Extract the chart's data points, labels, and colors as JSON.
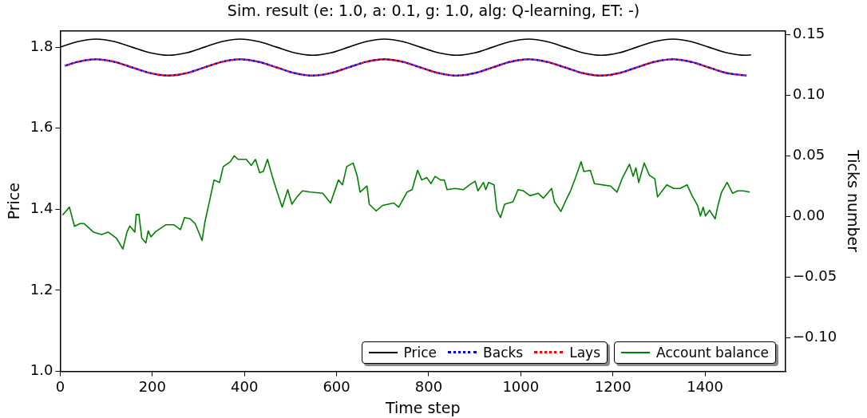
{
  "chart_data": {
    "type": "line",
    "title": "Sim. result (e: 1.0, a: 0.1, g: 1.0, alg: Q-learning, ET: -)",
    "xlabel": "Time step",
    "ylabel": "Price",
    "y2label": "Ticks number",
    "xlim": [
      0,
      1575
    ],
    "xticks": [
      0,
      200,
      400,
      600,
      800,
      1000,
      1200,
      1400
    ],
    "ylim": [
      1.0,
      1.84
    ],
    "yticks": [
      {
        "value": 1,
        "label": "1.0"
      },
      1.2,
      1.4,
      1.6,
      1.8
    ],
    "y2lim": [
      -0.128,
      0.153
    ],
    "y2ticks": [
      {
        "value": -0.1,
        "label": "−0.10"
      },
      -0.05,
      {
        "value": 0,
        "label": "0.00"
      },
      0.05,
      {
        "value": 0.1,
        "label": "0.10"
      },
      0.15
    ],
    "grid": false,
    "legend": "bottom right",
    "marker": "none",
    "series": [
      {
        "name": "Price",
        "color": "#000000",
        "line_style": "solid",
        "x": [
          0,
          39,
          78,
          117,
          156,
          196,
          235,
          274,
          313,
          352,
          391,
          430,
          470,
          509,
          548,
          587,
          626,
          665,
          704,
          743,
          782,
          822,
          861,
          900,
          939,
          978,
          1017,
          1056,
          1096,
          1135,
          1174,
          1213,
          1252,
          1291,
          1330,
          1369,
          1408,
          1448,
          1487,
          1500
        ],
        "values": [
          1.8,
          1.814,
          1.82,
          1.814,
          1.8,
          1.786,
          1.78,
          1.786,
          1.8,
          1.814,
          1.82,
          1.814,
          1.8,
          1.786,
          1.78,
          1.786,
          1.8,
          1.814,
          1.82,
          1.814,
          1.8,
          1.786,
          1.78,
          1.786,
          1.8,
          1.814,
          1.82,
          1.814,
          1.8,
          1.786,
          1.78,
          1.786,
          1.8,
          1.814,
          1.82,
          1.814,
          1.8,
          1.786,
          1.78,
          1.781
        ]
      },
      {
        "name": "Backs",
        "color": "#0000ff",
        "line_style": "dotted",
        "x": [
          10,
          39,
          78,
          117,
          156,
          196,
          235,
          274,
          313,
          352,
          391,
          430,
          470,
          509,
          548,
          587,
          626,
          665,
          704,
          743,
          782,
          822,
          861,
          900,
          939,
          978,
          1017,
          1056,
          1096,
          1135,
          1174,
          1213,
          1252,
          1291,
          1330,
          1369,
          1408,
          1448,
          1490
        ],
        "values": [
          1.754,
          1.764,
          1.77,
          1.764,
          1.75,
          1.736,
          1.73,
          1.736,
          1.75,
          1.764,
          1.77,
          1.764,
          1.75,
          1.736,
          1.73,
          1.736,
          1.75,
          1.764,
          1.77,
          1.764,
          1.75,
          1.736,
          1.73,
          1.736,
          1.75,
          1.764,
          1.77,
          1.764,
          1.75,
          1.736,
          1.73,
          1.736,
          1.75,
          1.764,
          1.77,
          1.764,
          1.75,
          1.736,
          1.73
        ]
      },
      {
        "name": "Lays",
        "color": "#ff0000",
        "line_style": "dotted",
        "x": [
          10,
          39,
          78,
          117,
          156,
          196,
          235,
          274,
          313,
          352,
          391,
          430,
          470,
          509,
          548,
          587,
          626,
          665,
          704,
          743,
          782,
          822,
          861,
          900,
          939,
          978,
          1017,
          1056,
          1096,
          1135,
          1174,
          1213,
          1252,
          1291,
          1330,
          1369,
          1408,
          1448,
          1490
        ],
        "values": [
          1.754,
          1.764,
          1.77,
          1.764,
          1.75,
          1.736,
          1.73,
          1.736,
          1.75,
          1.764,
          1.77,
          1.764,
          1.75,
          1.736,
          1.73,
          1.736,
          1.75,
          1.764,
          1.77,
          1.764,
          1.75,
          1.736,
          1.73,
          1.736,
          1.75,
          1.764,
          1.77,
          1.764,
          1.75,
          1.736,
          1.73,
          1.736,
          1.75,
          1.764,
          1.77,
          1.764,
          1.75,
          1.736,
          1.73
        ]
      },
      {
        "name": "Account balance",
        "color": "#008000",
        "line_style": "solid",
        "axis": "y2",
        "x": [
          5,
          20,
          31,
          43,
          52,
          72,
          90,
          104,
          122,
          136,
          145,
          151,
          162,
          165,
          171,
          177,
          186,
          191,
          197,
          206,
          229,
          247,
          261,
          270,
          282,
          293,
          308,
          314,
          325,
          334,
          346,
          354,
          369,
          378,
          386,
          404,
          415,
          424,
          433,
          441,
          450,
          462,
          471,
          482,
          494,
          503,
          514,
          526,
          543,
          570,
          587,
          604,
          613,
          622,
          636,
          645,
          651,
          666,
          671,
          686,
          700,
          724,
          735,
          753,
          764,
          776,
          785,
          796,
          805,
          814,
          826,
          834,
          840,
          857,
          875,
          889,
          901,
          907,
          919,
          924,
          930,
          942,
          948,
          956,
          965,
          983,
          994,
          1006,
          1020,
          1038,
          1049,
          1067,
          1073,
          1087,
          1099,
          1108,
          1119,
          1131,
          1137,
          1151,
          1160,
          1195,
          1209,
          1221,
          1236,
          1244,
          1250,
          1256,
          1268,
          1279,
          1291,
          1297,
          1317,
          1332,
          1346,
          1361,
          1372,
          1384,
          1390,
          1396,
          1401,
          1410,
          1422,
          1428,
          1436,
          1448,
          1460,
          1471,
          1483,
          1497
        ],
        "values": [
          0.001,
          0.0076,
          -0.0083,
          -0.006,
          -0.006,
          -0.013,
          -0.015,
          -0.013,
          -0.018,
          -0.027,
          -0.013,
          -0.008,
          -0.013,
          0.0015,
          0.0015,
          -0.018,
          -0.022,
          -0.012,
          -0.017,
          -0.013,
          -0.007,
          -0.007,
          -0.011,
          -0.001,
          -0.002,
          -0.006,
          -0.02,
          -0.005,
          0.014,
          0.03,
          0.028,
          0.041,
          0.045,
          0.05,
          0.047,
          0.047,
          0.042,
          0.047,
          0.036,
          0.037,
          0.047,
          0.031,
          0.02,
          0.0076,
          0.022,
          0.01,
          0.016,
          0.021,
          0.02,
          0.019,
          0.011,
          0.03,
          0.026,
          0.041,
          0.044,
          0.033,
          0.02,
          0.025,
          0.01,
          0.0044,
          0.009,
          0.011,
          0.0076,
          0.02,
          0.022,
          0.038,
          0.03,
          0.032,
          0.027,
          0.033,
          0.03,
          0.03,
          0.022,
          0.023,
          0.022,
          0.026,
          0.029,
          0.021,
          0.028,
          0.022,
          0.028,
          0.026,
          0.0051,
          -0.001,
          0.01,
          0.012,
          0.022,
          0.021,
          0.017,
          0.019,
          0.015,
          0.023,
          0.012,
          0.004,
          0.014,
          0.021,
          0.032,
          0.045,
          0.037,
          0.038,
          0.027,
          0.025,
          0.02,
          0.032,
          0.043,
          0.033,
          0.04,
          0.028,
          0.044,
          0.034,
          0.031,
          0.016,
          0.026,
          0.023,
          0.023,
          0.026,
          0.017,
          0.0088,
          0.0003,
          0.0076,
          0.0003,
          0.005,
          -0.002,
          0.0088,
          0.02,
          0.028,
          0.019,
          0.021,
          0.021,
          0.02
        ]
      }
    ]
  }
}
